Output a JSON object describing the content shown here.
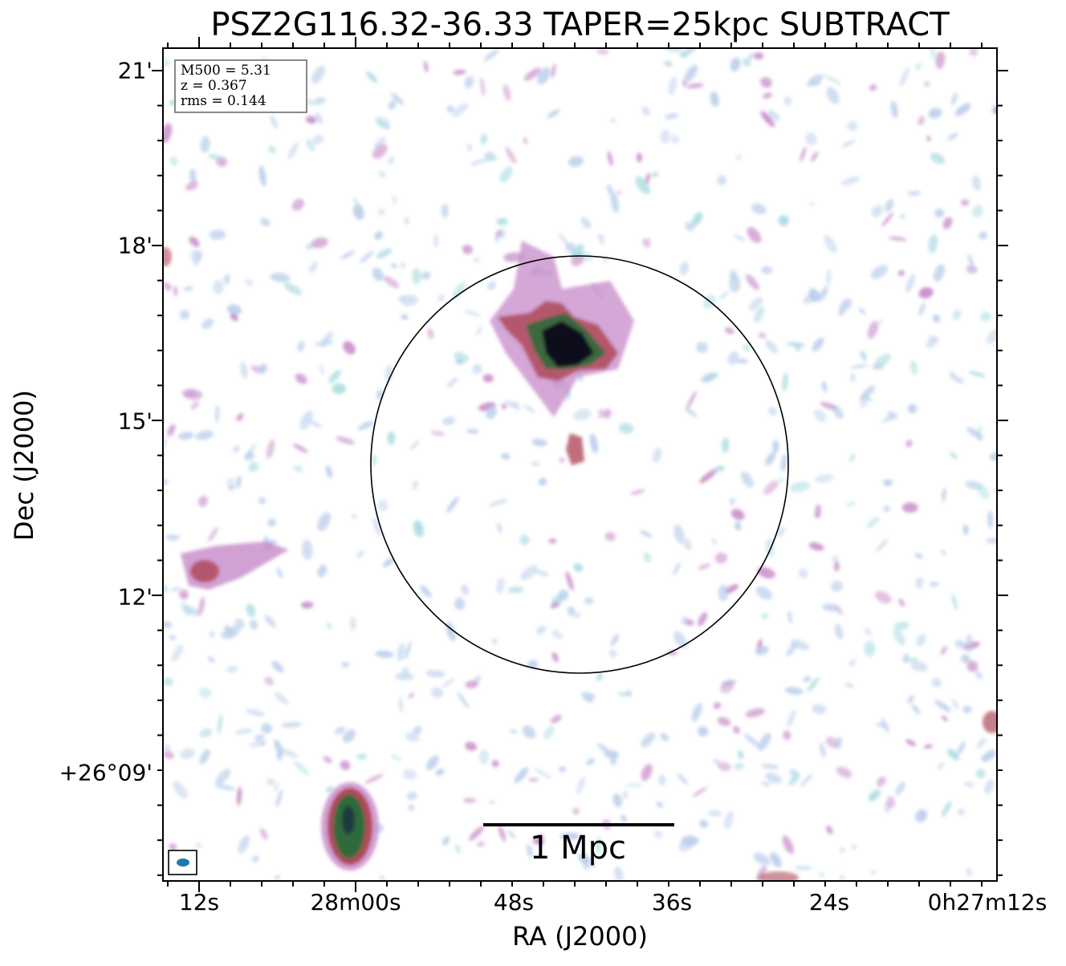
{
  "title": "PSZ2G116.32-36.33 TAPER=25kpc SUBTRACT",
  "axes": {
    "xlabel": "RA (J2000)",
    "ylabel": "Dec (J2000)",
    "xticks": [
      "12s",
      "28m00s",
      "48s",
      "36s",
      "24s",
      "0h27m12s"
    ],
    "yticks": [
      "21'",
      "18'",
      "15'",
      "12'",
      "+26°09'"
    ]
  },
  "info_box": {
    "mass": "M500 = 5.31",
    "redshift": "z = 0.367",
    "rms": "rms = 0.144"
  },
  "scale_bar": {
    "label": "1 Mpc"
  },
  "colors": {
    "faint_emission": "#b8cdea",
    "mid_emission": "#c68ac8",
    "bright_emission": "#b04a5a",
    "peak_emission": "#2d6b3a",
    "core": "#0a0a1e",
    "beam": "#1f77b4"
  }
}
